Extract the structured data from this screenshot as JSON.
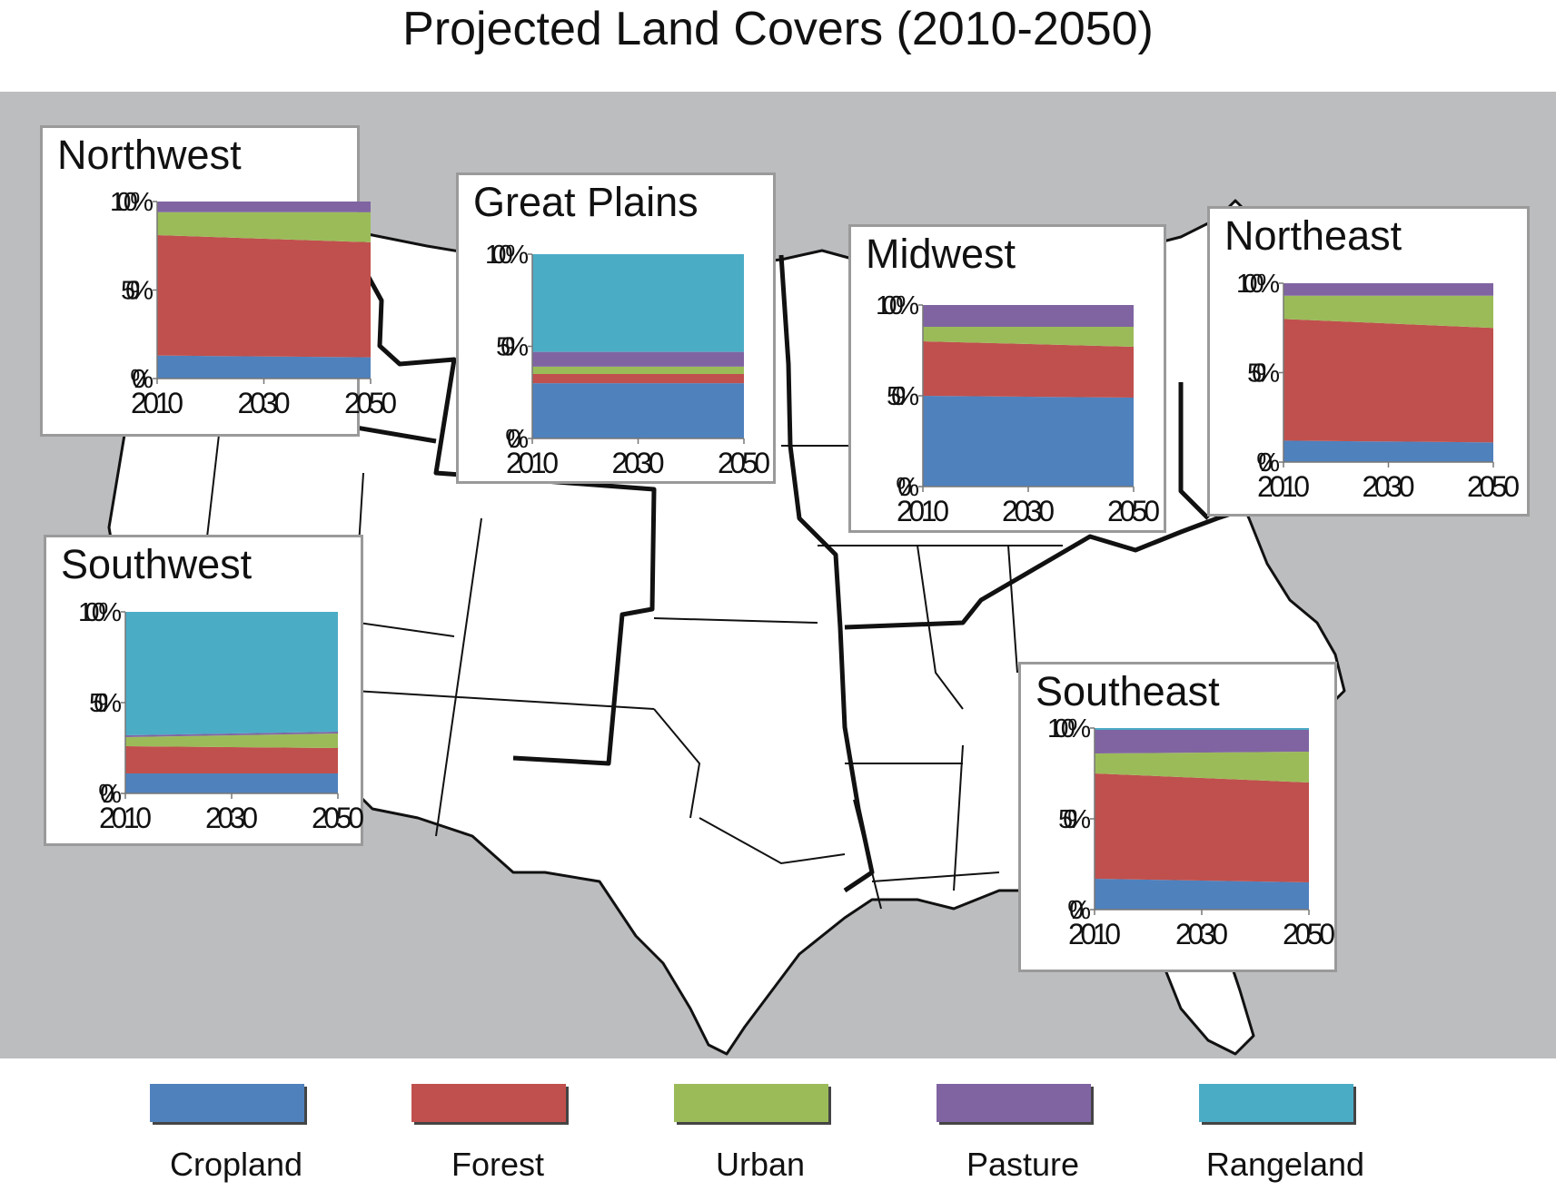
{
  "title": "Projected Land Covers (2010-2050)",
  "colors": {
    "Cropland": "#4f81bd",
    "Forest": "#c0504d",
    "Urban": "#9bbb59",
    "Pasture": "#8064a2",
    "Rangeland": "#4bacc6",
    "map_background": "#bcbdbf"
  },
  "legend": [
    {
      "label": "Cropland",
      "color_key": "Cropland"
    },
    {
      "label": "Forest",
      "color_key": "Forest"
    },
    {
      "label": "Urban",
      "color_key": "Urban"
    },
    {
      "label": "Pasture",
      "color_key": "Pasture"
    },
    {
      "label": "Rangeland",
      "color_key": "Rangeland"
    }
  ],
  "chart_data": [
    {
      "type": "area",
      "stacked": true,
      "title": "Northwest",
      "x": [
        2010,
        2050
      ],
      "x_ticks": [
        "2010",
        "2030",
        "2050"
      ],
      "y_ticks": [
        "0%",
        "50%",
        "100%"
      ],
      "ylim": [
        0,
        100
      ],
      "series": [
        {
          "name": "Cropland",
          "values": [
            13,
            12
          ]
        },
        {
          "name": "Forest",
          "values": [
            68,
            65
          ]
        },
        {
          "name": "Urban",
          "values": [
            13,
            17
          ]
        },
        {
          "name": "Pasture",
          "values": [
            6,
            6
          ]
        },
        {
          "name": "Rangeland",
          "values": [
            0,
            0
          ]
        }
      ]
    },
    {
      "type": "area",
      "stacked": true,
      "title": "Great Plains",
      "x": [
        2010,
        2050
      ],
      "x_ticks": [
        "2010",
        "2030",
        "2050"
      ],
      "y_ticks": [
        "0%",
        "50%",
        "100%"
      ],
      "ylim": [
        0,
        100
      ],
      "series": [
        {
          "name": "Cropland",
          "values": [
            30,
            30
          ]
        },
        {
          "name": "Forest",
          "values": [
            5,
            5
          ]
        },
        {
          "name": "Urban",
          "values": [
            4,
            4
          ]
        },
        {
          "name": "Pasture",
          "values": [
            8,
            8
          ]
        },
        {
          "name": "Rangeland",
          "values": [
            53,
            53
          ]
        }
      ]
    },
    {
      "type": "area",
      "stacked": true,
      "title": "Midwest",
      "x": [
        2010,
        2050
      ],
      "x_ticks": [
        "2010",
        "2030",
        "2050"
      ],
      "y_ticks": [
        "0%",
        "50%",
        "100%"
      ],
      "ylim": [
        0,
        100
      ],
      "series": [
        {
          "name": "Cropland",
          "values": [
            50,
            49
          ]
        },
        {
          "name": "Forest",
          "values": [
            30,
            28
          ]
        },
        {
          "name": "Urban",
          "values": [
            8,
            11
          ]
        },
        {
          "name": "Pasture",
          "values": [
            12,
            12
          ]
        },
        {
          "name": "Rangeland",
          "values": [
            0,
            0
          ]
        }
      ]
    },
    {
      "type": "area",
      "stacked": true,
      "title": "Northeast",
      "x": [
        2010,
        2050
      ],
      "x_ticks": [
        "2010",
        "2030",
        "2050"
      ],
      "y_ticks": [
        "0%",
        "50%",
        "100%"
      ],
      "ylim": [
        0,
        100
      ],
      "series": [
        {
          "name": "Cropland",
          "values": [
            12,
            11
          ]
        },
        {
          "name": "Forest",
          "values": [
            68,
            64
          ]
        },
        {
          "name": "Urban",
          "values": [
            13,
            18
          ]
        },
        {
          "name": "Pasture",
          "values": [
            7,
            7
          ]
        },
        {
          "name": "Rangeland",
          "values": [
            0,
            0
          ]
        }
      ]
    },
    {
      "type": "area",
      "stacked": true,
      "title": "Southwest",
      "x": [
        2010,
        2050
      ],
      "x_ticks": [
        "2010",
        "2030",
        "2050"
      ],
      "y_ticks": [
        "0%",
        "50%",
        "100%"
      ],
      "ylim": [
        0,
        100
      ],
      "series": [
        {
          "name": "Cropland",
          "values": [
            11,
            11
          ]
        },
        {
          "name": "Forest",
          "values": [
            15,
            14
          ]
        },
        {
          "name": "Urban",
          "values": [
            5,
            8
          ]
        },
        {
          "name": "Pasture",
          "values": [
            1,
            1
          ]
        },
        {
          "name": "Rangeland",
          "values": [
            68,
            66
          ]
        }
      ]
    },
    {
      "type": "area",
      "stacked": true,
      "title": "Southeast",
      "x": [
        2010,
        2050
      ],
      "x_ticks": [
        "2010",
        "2030",
        "2050"
      ],
      "y_ticks": [
        "0%",
        "50%",
        "100%"
      ],
      "ylim": [
        0,
        100
      ],
      "series": [
        {
          "name": "Cropland",
          "values": [
            17,
            15
          ]
        },
        {
          "name": "Forest",
          "values": [
            58,
            55
          ]
        },
        {
          "name": "Urban",
          "values": [
            11,
            17
          ]
        },
        {
          "name": "Pasture",
          "values": [
            13,
            12
          ]
        },
        {
          "name": "Rangeland",
          "values": [
            1,
            1
          ]
        }
      ]
    }
  ]
}
